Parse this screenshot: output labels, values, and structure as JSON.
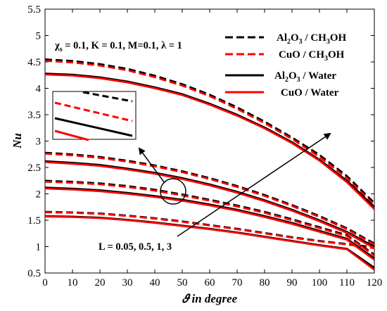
{
  "chart_data": {
    "type": "line",
    "xlabel": "𝜗 in degree",
    "ylabel": "Nu",
    "xlim": [
      0,
      120
    ],
    "ylim": [
      0.5,
      5.5
    ],
    "x_ticks": [
      "0",
      "10",
      "20",
      "30",
      "40",
      "50",
      "60",
      "70",
      "80",
      "90",
      "100",
      "110",
      "120"
    ],
    "y_ticks": [
      "0.5",
      "1",
      "1.5",
      "2",
      "2.5",
      "3",
      "3.5",
      "4",
      "4.5",
      "5",
      "5.5"
    ],
    "grid": false,
    "legend_position": "top-right",
    "parameter_text": "χs = 0.1, K = 0.1, M=0.1, λ = 1",
    "L_annotation": "L = 0.05, 0.5, 1, 3",
    "x": [
      0,
      10,
      20,
      30,
      40,
      50,
      60,
      70,
      80,
      90,
      100,
      110,
      120
    ],
    "series": [
      {
        "name": "Al2O3 / CH3OH",
        "L": 0.05,
        "values": [
          1.66,
          1.65,
          1.63,
          1.59,
          1.54,
          1.48,
          1.41,
          1.34,
          1.26,
          1.18,
          1.11,
          1.05,
          0.99
        ]
      },
      {
        "name": "CuO / CH3OH",
        "L": 0.05,
        "values": [
          1.65,
          1.64,
          1.62,
          1.58,
          1.53,
          1.47,
          1.4,
          1.33,
          1.25,
          1.17,
          1.1,
          1.04,
          0.97
        ]
      },
      {
        "name": "Al2O3 / Water",
        "L": 0.05,
        "values": [
          1.58,
          1.57,
          1.55,
          1.51,
          1.46,
          1.4,
          1.34,
          1.27,
          1.19,
          1.11,
          1.03,
          0.96,
          0.6
        ]
      },
      {
        "name": "CuO / Water",
        "L": 0.05,
        "values": [
          1.57,
          1.56,
          1.54,
          1.5,
          1.45,
          1.39,
          1.33,
          1.26,
          1.18,
          1.1,
          1.02,
          0.95,
          0.56
        ]
      },
      {
        "name": "Al2O3 / CH3OH",
        "L": 0.5,
        "values": [
          2.25,
          2.23,
          2.2,
          2.15,
          2.08,
          1.99,
          1.89,
          1.78,
          1.66,
          1.52,
          1.37,
          1.22,
          0.85
        ]
      },
      {
        "name": "CuO / CH3OH",
        "L": 0.5,
        "values": [
          2.23,
          2.21,
          2.18,
          2.13,
          2.06,
          1.97,
          1.87,
          1.76,
          1.64,
          1.5,
          1.35,
          1.2,
          0.83
        ]
      },
      {
        "name": "Al2O3 / Water",
        "L": 0.5,
        "values": [
          2.12,
          2.1,
          2.07,
          2.02,
          1.96,
          1.89,
          1.8,
          1.7,
          1.58,
          1.45,
          1.3,
          1.15,
          0.78
        ]
      },
      {
        "name": "CuO / Water",
        "L": 0.5,
        "values": [
          2.1,
          2.08,
          2.05,
          2.0,
          1.94,
          1.87,
          1.78,
          1.68,
          1.56,
          1.43,
          1.28,
          1.13,
          0.75
        ]
      },
      {
        "name": "Al2O3 / CH3OH",
        "L": 1,
        "values": [
          2.78,
          2.75,
          2.7,
          2.63,
          2.54,
          2.43,
          2.3,
          2.15,
          1.98,
          1.79,
          1.58,
          1.35,
          1.06
        ]
      },
      {
        "name": "CuO / CH3OH",
        "L": 1,
        "values": [
          2.76,
          2.73,
          2.68,
          2.61,
          2.52,
          2.41,
          2.28,
          2.13,
          1.96,
          1.77,
          1.56,
          1.33,
          1.04
        ]
      },
      {
        "name": "Al2O3 / Water",
        "L": 1,
        "values": [
          2.62,
          2.59,
          2.55,
          2.48,
          2.4,
          2.3,
          2.18,
          2.04,
          1.88,
          1.7,
          1.5,
          1.28,
          1.0
        ]
      },
      {
        "name": "CuO / Water",
        "L": 1,
        "values": [
          2.6,
          2.57,
          2.53,
          2.46,
          2.38,
          2.28,
          2.16,
          2.02,
          1.86,
          1.68,
          1.48,
          1.26,
          0.97
        ]
      },
      {
        "name": "Al2O3 / CH3OH",
        "L": 3,
        "values": [
          4.55,
          4.52,
          4.46,
          4.37,
          4.24,
          4.08,
          3.88,
          3.64,
          3.37,
          3.07,
          2.74,
          2.34,
          1.83
        ]
      },
      {
        "name": "CuO / CH3OH",
        "L": 3,
        "values": [
          4.52,
          4.49,
          4.43,
          4.34,
          4.21,
          4.05,
          3.85,
          3.61,
          3.34,
          3.04,
          2.7,
          2.3,
          1.78
        ]
      },
      {
        "name": "Al2O3 / Water",
        "L": 3,
        "values": [
          4.28,
          4.26,
          4.21,
          4.13,
          4.02,
          3.89,
          3.71,
          3.5,
          3.26,
          2.98,
          2.65,
          2.25,
          1.75
        ]
      },
      {
        "name": "CuO / Water",
        "L": 3,
        "values": [
          4.26,
          4.24,
          4.19,
          4.11,
          4.0,
          3.87,
          3.69,
          3.48,
          3.24,
          2.96,
          2.63,
          2.22,
          1.71
        ]
      }
    ],
    "styles": {
      "Al2O3 / CH3OH": {
        "color": "#000000",
        "dash": "dashed"
      },
      "CuO / CH3OH": {
        "color": "#ff0000",
        "dash": "dashed"
      },
      "Al2O3 / Water": {
        "color": "#000000",
        "dash": "solid"
      },
      "CuO / Water": {
        "color": "#ff0000",
        "dash": "solid"
      }
    }
  }
}
